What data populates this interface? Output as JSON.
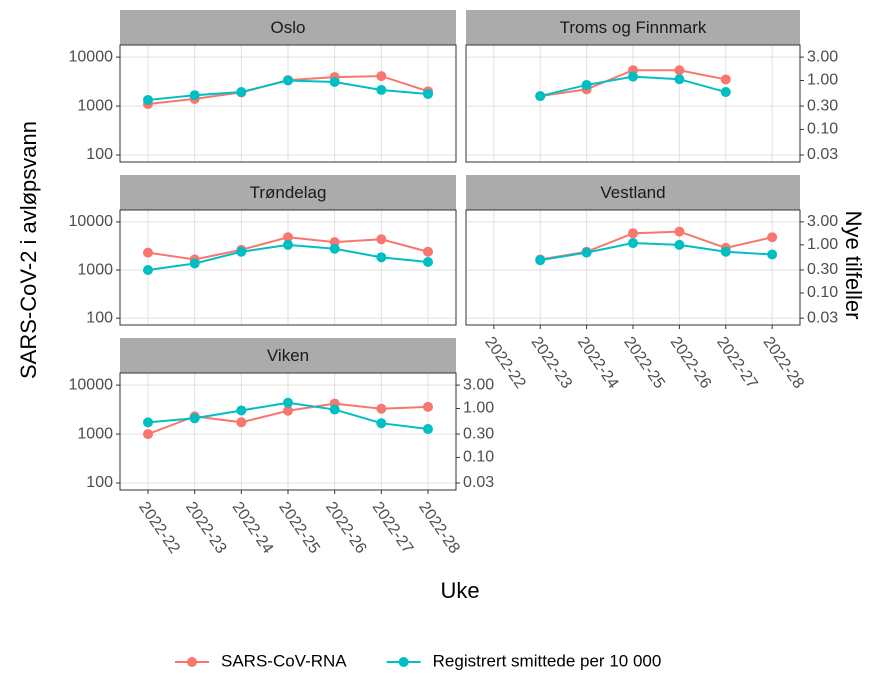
{
  "chart_data": {
    "type": "line",
    "xlabel": "Uke",
    "ylabel": "SARS-CoV-2 i avløpsvann",
    "y2label": "Nye tilfeller",
    "log_scale": true,
    "grid": true,
    "legend": "bottom",
    "categories": [
      "2022-22",
      "2022-23",
      "2022-24",
      "2022-25",
      "2022-26",
      "2022-27",
      "2022-28"
    ],
    "ylim": [
      72,
      17700
    ],
    "yticks": [
      100,
      1000,
      10000
    ],
    "y2lim": [
      0.0216,
      5.3
    ],
    "y2ticks": [
      {
        "value": 0.03,
        "label": "0.03"
      },
      {
        "value": 0.1,
        "label": "0.10"
      },
      {
        "value": 0.3,
        "label": "0.30"
      },
      {
        "value": 1,
        "label": "1.00"
      },
      {
        "value": 3,
        "label": "3.00"
      }
    ],
    "series": [
      {
        "name": "SARS-CoV-RNA",
        "color": "#f8766d"
      },
      {
        "name": "Registrert smittede per 10 000",
        "color": "#00bfc4",
        "axis": "y2"
      }
    ],
    "facets": [
      {
        "title": "Oslo",
        "series": [
          {
            "values": [
              1100,
              1400,
              1900,
              3400,
              3900,
              4100,
              2000
            ]
          },
          {
            "values": [
              0.4,
              0.5,
              0.58,
              1.0,
              0.93,
              0.64,
              0.53
            ]
          }
        ]
      },
      {
        "title": "Troms og Finnmark",
        "series": [
          {
            "values": [
              null,
              1600,
              2200,
              5400,
              5400,
              3500,
              null
            ]
          },
          {
            "values": [
              null,
              0.48,
              0.81,
              1.2,
              1.06,
              0.58,
              null
            ]
          }
        ]
      },
      {
        "title": "Trøndelag",
        "series": [
          {
            "values": [
              2300,
              1660,
              2630,
              4800,
              3800,
              4370,
              2400
            ]
          },
          {
            "values": [
              0.3,
              0.41,
              0.72,
              1.0,
              0.83,
              0.55,
              0.44
            ]
          }
        ]
      },
      {
        "title": "Vestland",
        "series": [
          {
            "values": [
              null,
              1660,
              2400,
              5800,
              6300,
              2880,
              4800
            ]
          },
          {
            "values": [
              null,
              0.48,
              0.69,
              1.09,
              1.0,
              0.72,
              0.63
            ]
          }
        ]
      },
      {
        "title": "Viken",
        "series": [
          {
            "values": [
              1000,
              2300,
              1740,
              3000,
              4200,
              3300,
              3600
            ]
          },
          {
            "values": [
              0.52,
              0.63,
              0.91,
              1.31,
              0.95,
              0.5,
              0.38
            ]
          }
        ]
      }
    ]
  }
}
